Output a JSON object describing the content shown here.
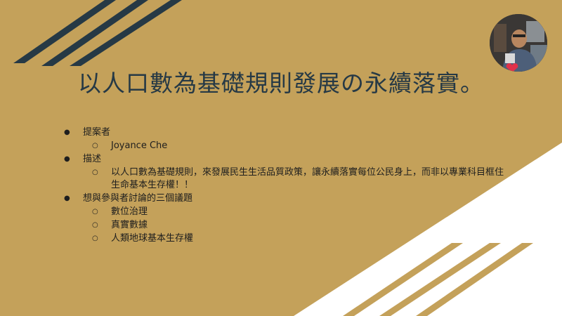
{
  "slide": {
    "title": "以人口數為基礎規則發展の永續落實。",
    "colors": {
      "background": "#c4a15a",
      "navy": "#263945",
      "white": "#ffffff",
      "gold_stripe": "#c4a15a"
    },
    "bullets": {
      "filled": "●",
      "hollow": "○"
    },
    "outline": [
      {
        "label": "提案者",
        "children": [
          "Joyance Che"
        ]
      },
      {
        "label": "描述",
        "children": [
          "以人口數為基礎規則，來發展民生生活品質政策，讓永續落實每位公民身上，而非以專業科目框住生命基本生存權！！"
        ]
      },
      {
        "label": "想與參與者討論的三個議題",
        "children": [
          "數位治理",
          "真實數據",
          "人類地球基本生存權"
        ]
      }
    ]
  }
}
